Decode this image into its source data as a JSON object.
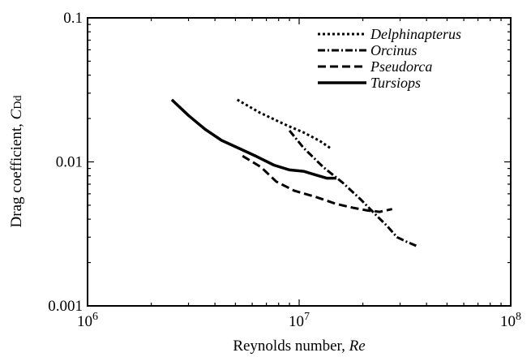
{
  "chart_data": {
    "type": "line",
    "x_scale": "log",
    "y_scale": "log",
    "xlim": [
      1000000,
      100000000
    ],
    "ylim": [
      0.001,
      0.1
    ],
    "grid": false,
    "legend_placement": "top-right",
    "x_ticks": [
      {
        "value": 1000000,
        "base": "10",
        "exp": "6"
      },
      {
        "value": 10000000,
        "base": "10",
        "exp": "7"
      },
      {
        "value": 100000000,
        "base": "10",
        "exp": "8"
      }
    ],
    "y_ticks": [
      {
        "value": 0.001,
        "label": "0.001"
      },
      {
        "value": 0.01,
        "label": "0.01"
      },
      {
        "value": 0.1,
        "label": "0.1"
      }
    ],
    "xlabel": {
      "text": "Reynolds number, ",
      "italic": "Re"
    },
    "ylabel": {
      "text": "Drag coefficient, ",
      "symbol": "C",
      "subscript": "Dd"
    },
    "series": [
      {
        "name": "Delphinapterus",
        "style": "dotted",
        "points": [
          [
            5100000.0,
            0.027
          ],
          [
            6500000.0,
            0.022
          ],
          [
            8700000.0,
            0.018
          ],
          [
            10500000.0,
            0.016
          ],
          [
            12500000.0,
            0.014
          ],
          [
            14000000.0,
            0.0125
          ]
        ]
      },
      {
        "name": "Orcinus",
        "style": "dashdot",
        "points": [
          [
            9000000.0,
            0.0165
          ],
          [
            10500000.0,
            0.0125
          ],
          [
            13000000.0,
            0.0092
          ],
          [
            16000000.0,
            0.0072
          ],
          [
            19500000.0,
            0.0055
          ],
          [
            23000000.0,
            0.0043
          ],
          [
            26000000.0,
            0.0036
          ],
          [
            29000000.0,
            0.003
          ],
          [
            32000000.0,
            0.0028
          ],
          [
            36000000.0,
            0.0026
          ]
        ]
      },
      {
        "name": "Pseudorca",
        "style": "dashed",
        "points": [
          [
            5400000.0,
            0.011
          ],
          [
            6600000.0,
            0.0092
          ],
          [
            7800000.0,
            0.0073
          ],
          [
            9500000.0,
            0.0063
          ],
          [
            12000000.0,
            0.0057
          ],
          [
            15000000.0,
            0.0051
          ],
          [
            18000000.0,
            0.0048
          ],
          [
            21000000.0,
            0.0046
          ],
          [
            24000000.0,
            0.0045
          ],
          [
            27500000.0,
            0.0047
          ]
        ]
      },
      {
        "name": "Tursiops",
        "style": "solid",
        "points": [
          [
            2500000.0,
            0.027
          ],
          [
            3000000.0,
            0.021
          ],
          [
            3600000.0,
            0.0168
          ],
          [
            4300000.0,
            0.0141
          ],
          [
            5200000.0,
            0.0124
          ],
          [
            6300000.0,
            0.0109
          ],
          [
            7600000.0,
            0.0095
          ],
          [
            9000000.0,
            0.0088
          ],
          [
            10500000.0,
            0.0086
          ],
          [
            12000000.0,
            0.0081
          ],
          [
            13500000.0,
            0.0077
          ],
          [
            15000000.0,
            0.0077
          ]
        ]
      }
    ]
  }
}
